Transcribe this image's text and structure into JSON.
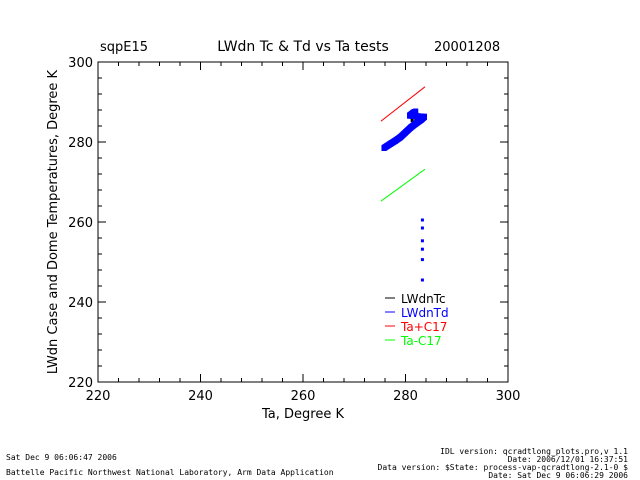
{
  "header": {
    "site": "sqpE15",
    "title": "LWdn Tc & Td vs Ta tests",
    "date": "20001208"
  },
  "chart_data": {
    "type": "scatter",
    "xlabel": "Ta, Degree K",
    "ylabel": "LWdn Case and Dome Temperatures, Degree K",
    "xlim": [
      220,
      300
    ],
    "ylim": [
      220,
      300
    ],
    "xticks": [
      "220",
      "240",
      "260",
      "280",
      "300"
    ],
    "yticks": [
      "220",
      "240",
      "260",
      "280",
      "300"
    ],
    "grid": false,
    "legend_position": "bottom-right",
    "series": [
      {
        "name": "LWdnTc",
        "color": "#000000",
        "kind": "points",
        "points": [
          [
            281.5,
            286.5
          ],
          [
            281.8,
            287.2
          ],
          [
            282.0,
            286.0
          ],
          [
            282.2,
            287.0
          ],
          [
            281.3,
            285.5
          ]
        ]
      },
      {
        "name": "LWdnTd",
        "color": "#0000ff",
        "kind": "band",
        "points": [
          [
            275.8,
            278.5
          ],
          [
            277.0,
            279.5
          ],
          [
            278.0,
            280.3
          ],
          [
            279.0,
            281.2
          ],
          [
            280.0,
            282.4
          ],
          [
            281.0,
            283.6
          ],
          [
            282.0,
            284.6
          ],
          [
            283.0,
            285.5
          ],
          [
            283.7,
            286.3
          ],
          [
            280.8,
            286.6
          ],
          [
            281.5,
            287.3
          ],
          [
            282.0,
            287.6
          ],
          [
            283.3,
            260.5
          ],
          [
            283.3,
            258.5
          ],
          [
            283.3,
            255.3
          ],
          [
            283.3,
            253.2
          ],
          [
            283.3,
            250.6
          ],
          [
            283.3,
            245.5
          ]
        ]
      },
      {
        "name": "Ta+C17",
        "color": "#ff0000",
        "kind": "line",
        "points": [
          [
            275.2,
            285.2
          ],
          [
            283.8,
            293.8
          ]
        ]
      },
      {
        "name": "Ta-C17",
        "color": "#00ff00",
        "kind": "line",
        "points": [
          [
            275.2,
            265.2
          ],
          [
            283.8,
            273.2
          ]
        ]
      }
    ]
  },
  "footer": {
    "run_date": "Sat Dec  9 06:06:47 2006",
    "lab": "Battelle Pacific Northwest National Laboratory, Arm Data Application",
    "idl_version": "IDL version: qcradtlong_plots.pro,v 1.1",
    "file_date": "Date: 2006/12/01 16:37:51",
    "data_version": "Data version: $State: process-vap-qcradtlong-2.1-0 $",
    "data_date": "Date: Sat Dec  9 06:06:29 2006"
  }
}
